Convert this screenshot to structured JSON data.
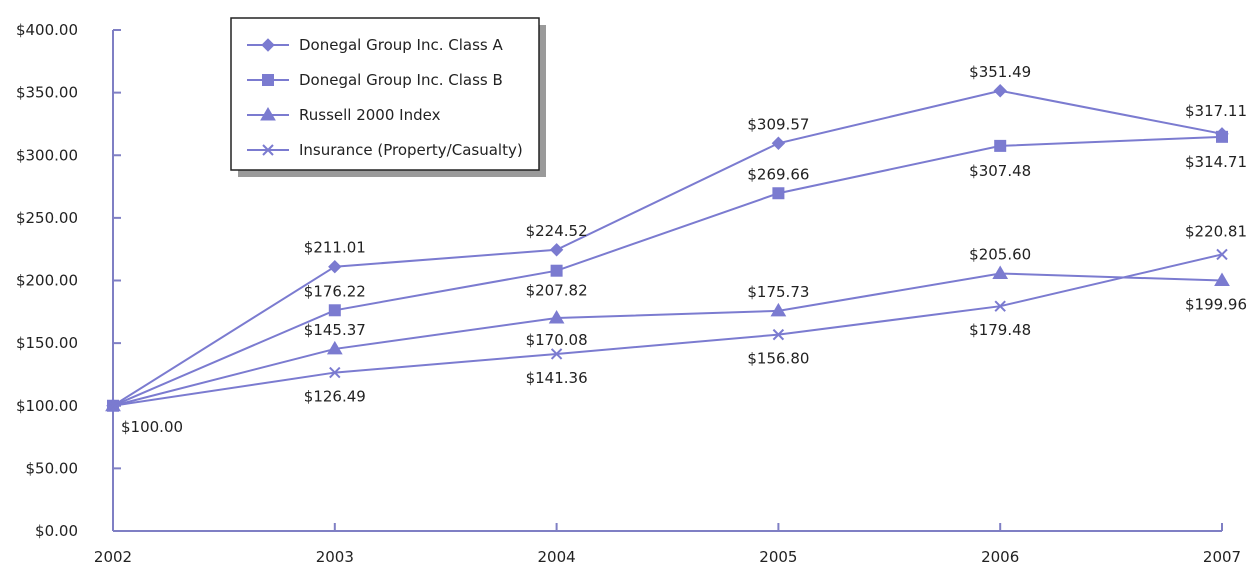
{
  "chart_data": {
    "type": "line",
    "title": "",
    "xlabel": "",
    "ylabel": "",
    "x": [
      "2002",
      "2003",
      "2004",
      "2005",
      "2006",
      "2007"
    ],
    "ylim": [
      0,
      400
    ],
    "yticks": [
      0,
      50,
      100,
      150,
      200,
      250,
      300,
      350,
      400
    ],
    "ytick_labels": [
      "$0.00",
      "$50.00",
      "$100.00",
      "$150.00",
      "$200.00",
      "$250.00",
      "$300.00",
      "$350.00",
      "$400.00"
    ],
    "grid": false,
    "legend_position": "top-left",
    "line_color": "#7b7bd0",
    "axis_color": "#7f7fc4",
    "series": [
      {
        "name": "Donegal Group Inc. Class A",
        "marker": "diamond",
        "values": [
          100.0,
          211.01,
          224.52,
          309.57,
          351.49,
          317.11
        ],
        "labels": [
          "$100.00",
          "$211.01",
          "$224.52",
          "$309.57",
          "$351.49",
          "$317.11"
        ]
      },
      {
        "name": "Donegal Group Inc. Class B",
        "marker": "square",
        "values": [
          100.0,
          176.22,
          207.82,
          269.66,
          307.48,
          314.71
        ],
        "labels": [
          "",
          "$176.22",
          "$207.82",
          "$269.66",
          "$307.48",
          "$314.71"
        ]
      },
      {
        "name": "Russell 2000 Index",
        "marker": "triangle",
        "values": [
          100.0,
          145.37,
          170.08,
          175.73,
          205.6,
          199.96
        ],
        "labels": [
          "",
          "$145.37",
          "$170.08",
          "$175.73",
          "$205.60",
          "$199.96"
        ]
      },
      {
        "name": "Insurance (Property/Casualty)",
        "marker": "x",
        "values": [
          100.0,
          126.49,
          141.36,
          156.8,
          179.48,
          220.81
        ],
        "labels": [
          "",
          "$126.49",
          "$141.36",
          "$156.80",
          "$179.48",
          "$220.81"
        ]
      }
    ]
  }
}
